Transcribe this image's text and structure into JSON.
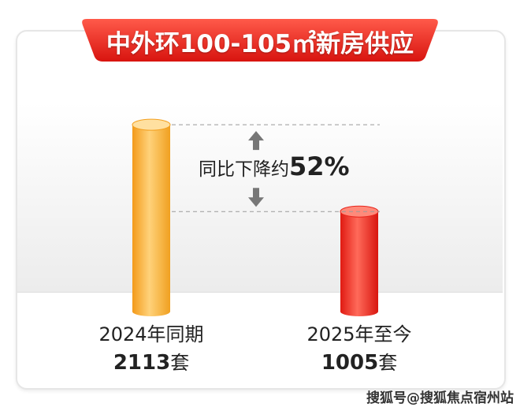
{
  "chart_data": {
    "type": "bar",
    "title": "中外环100-105㎡新房供应",
    "categories": [
      "2024年同期",
      "2025年至今"
    ],
    "values": [
      2113,
      1005
    ],
    "value_labels": [
      "2113",
      "1005"
    ],
    "unit": "套",
    "annotation": {
      "prefix": "同比下降约",
      "value": "52%"
    },
    "colors": [
      "#f5a623",
      "#e8251c"
    ],
    "grid": false
  },
  "watermark": "搜狐号@搜狐焦点宿州站"
}
